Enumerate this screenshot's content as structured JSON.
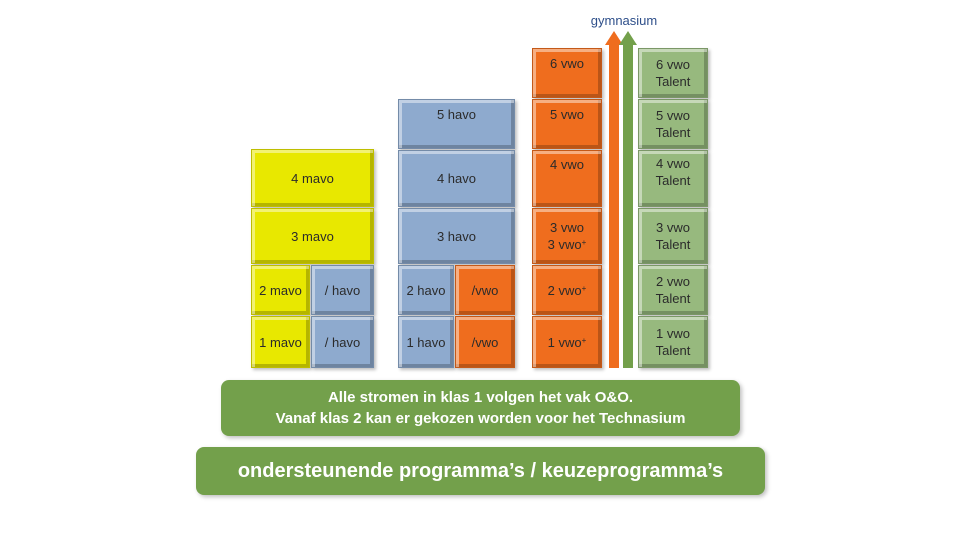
{
  "mavo_column": [
    {
      "id": "4mavo",
      "label": "4 mavo",
      "color": "yellow"
    },
    {
      "id": "3mavo",
      "label": "3 mavo",
      "color": "yellow"
    },
    {
      "id": "2mavo",
      "label": "2 mavo",
      "color": "yellow"
    },
    {
      "id": "2havo-slash",
      "label": "/ havo",
      "color": "blue"
    },
    {
      "id": "1mavo",
      "label": "1 mavo",
      "color": "yellow"
    },
    {
      "id": "1havo-slash",
      "label": "/ havo",
      "color": "blue"
    }
  ],
  "havo_column": [
    {
      "id": "5havo",
      "label": "5 havo",
      "color": "blue"
    },
    {
      "id": "4havo",
      "label": "4 havo",
      "color": "blue"
    },
    {
      "id": "3havo",
      "label": "3 havo",
      "color": "blue"
    },
    {
      "id": "2havo",
      "label": "2 havo",
      "color": "blue"
    },
    {
      "id": "2vwo-slash",
      "label": "/vwo",
      "color": "orange"
    },
    {
      "id": "1havo",
      "label": "1 havo",
      "color": "blue"
    },
    {
      "id": "1vwo-slash",
      "label": "/vwo",
      "color": "orange"
    }
  ],
  "vwo_column": [
    {
      "id": "6vwo",
      "label": "6 vwo"
    },
    {
      "id": "5vwo",
      "label": "5 vwo"
    },
    {
      "id": "4vwo",
      "label": "4 vwo"
    },
    {
      "id": "3vwo",
      "line1": "3 vwo",
      "line2": "3 vwo",
      "sup": "+"
    },
    {
      "id": "2vwo",
      "line1": "2 vwo",
      "sup": "+"
    },
    {
      "id": "1vwo",
      "line1": "1 vwo",
      "sup": "+"
    }
  ],
  "talent_column": [
    {
      "id": "6talent",
      "label": "6 vwo\nTalent"
    },
    {
      "id": "5talent",
      "label": "5 vwo\nTalent"
    },
    {
      "id": "4talent",
      "label": "4 vwo\nTalent"
    },
    {
      "id": "3talent",
      "label": "3 vwo\nTalent"
    },
    {
      "id": "2talent",
      "label": "2 vwo\nTalent"
    },
    {
      "id": "1talent",
      "label": "1 vwo\nTalent"
    }
  ],
  "arrows": {
    "label": "gymnasium",
    "orange": "#ef6d1e",
    "green": "#73a04b"
  },
  "banners": {
    "oo_line1": "Alle stromen in klas 1 volgen het vak O&O.",
    "oo_line2": "Vanaf klas 2 kan er gekozen worden voor het Technasium",
    "programs": "ondersteunende programma’s / keuzeprogramma’s"
  },
  "colors": {
    "yellow": "#e8e800",
    "blue": "#8eaace",
    "orange": "#ef6d1e",
    "green": "#97b97e",
    "banner": "#73a04b"
  }
}
